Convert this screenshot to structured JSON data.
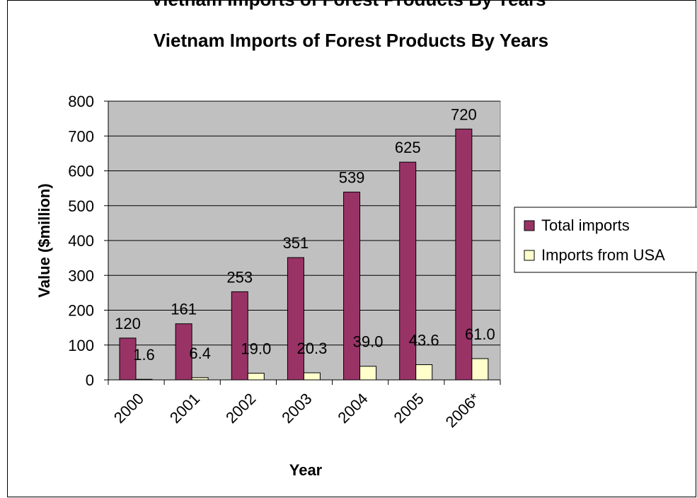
{
  "header": {
    "cut_off_title": "Vietnam Imports of Forest Products By Years"
  },
  "chart_data": {
    "type": "bar",
    "title": "Vietnam Imports of Forest Products By Years",
    "xlabel": "Year",
    "ylabel": "Value ($million)",
    "ylim": [
      0,
      800
    ],
    "yticks": [
      "0",
      "100",
      "200",
      "300",
      "400",
      "500",
      "600",
      "700",
      "800"
    ],
    "grid": true,
    "legend_position": "right",
    "categories": [
      "2000",
      "2001",
      "2002",
      "2003",
      "2004",
      "2005",
      "2006*"
    ],
    "series": [
      {
        "name": "Total imports",
        "color": "#993366",
        "values": [
          120,
          161,
          253,
          351,
          539,
          625,
          720
        ],
        "labels": [
          "120",
          "161",
          "253",
          "351",
          "539",
          "625",
          "720"
        ]
      },
      {
        "name": "Imports from USA",
        "color": "#FFFFCC",
        "values": [
          1.6,
          6.4,
          19.0,
          20.3,
          39.0,
          43.6,
          61.0
        ],
        "labels": [
          "1.6",
          "6.4",
          "19.0",
          "20.3",
          "39.0",
          "43.6",
          "61.0"
        ]
      }
    ],
    "plot_background": "#C0C0C0"
  }
}
